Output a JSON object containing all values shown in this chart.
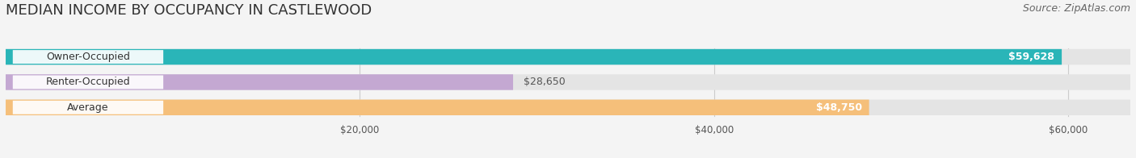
{
  "title": "MEDIAN INCOME BY OCCUPANCY IN CASTLEWOOD",
  "source": "Source: ZipAtlas.com",
  "categories": [
    "Owner-Occupied",
    "Renter-Occupied",
    "Average"
  ],
  "values": [
    59628,
    28650,
    48750
  ],
  "bar_colors": [
    "#2ab5b8",
    "#c4a8d2",
    "#f5bf7a"
  ],
  "value_labels": [
    "$59,628",
    "$28,650",
    "$48,750"
  ],
  "value_inside": [
    true,
    false,
    true
  ],
  "xlim": [
    0,
    63500
  ],
  "xticks": [
    20000,
    40000,
    60000
  ],
  "xtick_labels": [
    "$20,000",
    "$40,000",
    "$60,000"
  ],
  "background_color": "#f4f4f4",
  "bar_bg_color": "#e4e4e4",
  "title_fontsize": 13,
  "source_fontsize": 9,
  "bar_label_fontsize": 9,
  "value_fontsize": 9
}
